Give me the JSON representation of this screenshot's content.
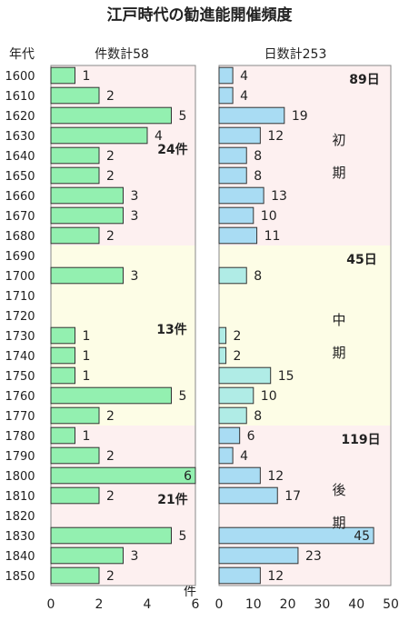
{
  "chart_data": {
    "type": "bar",
    "title": "江戸時代の勧進能開催頻度",
    "row_header": "年代",
    "categories": [
      "1600",
      "1610",
      "1620",
      "1630",
      "1640",
      "1650",
      "1660",
      "1670",
      "1680",
      "1690",
      "1700",
      "1710",
      "1720",
      "1730",
      "1740",
      "1750",
      "1760",
      "1770",
      "1780",
      "1790",
      "1800",
      "1810",
      "1820",
      "1830",
      "1840",
      "1850"
    ],
    "periods": [
      {
        "name": "初期",
        "label_chars": [
          "初",
          "期"
        ],
        "from": "1600",
        "to": "1680",
        "color": "#fdf0f0",
        "count_label": "24件",
        "days_label": "89日"
      },
      {
        "name": "中期",
        "label_chars": [
          "中",
          "期"
        ],
        "from": "1690",
        "to": "1770",
        "color": "#fdfde6",
        "count_label": "13件",
        "days_label": "45日"
      },
      {
        "name": "後期",
        "label_chars": [
          "後",
          "期"
        ],
        "from": "1780",
        "to": "1850",
        "color": "#fdf0f0",
        "count_label": "21件",
        "days_label": "119日"
      }
    ],
    "panels": [
      {
        "title": "件数計58",
        "unit": "件",
        "xlim": [
          0,
          6
        ],
        "ticks": [
          0,
          2,
          4,
          6
        ],
        "bar_color": "#93f0b0",
        "values": [
          1,
          2,
          5,
          4,
          2,
          2,
          3,
          3,
          2,
          null,
          3,
          null,
          null,
          1,
          1,
          1,
          5,
          2,
          1,
          2,
          6,
          2,
          null,
          5,
          3,
          2
        ]
      },
      {
        "title": "日数計253",
        "unit": "",
        "xlim": [
          0,
          50
        ],
        "ticks": [
          0,
          10,
          20,
          30,
          40,
          50
        ],
        "bar_color": "#a9dcf3",
        "bar_color_mid": "#b0ece6",
        "values": [
          4,
          4,
          19,
          12,
          8,
          8,
          13,
          10,
          11,
          null,
          8,
          null,
          null,
          2,
          2,
          15,
          10,
          8,
          6,
          4,
          12,
          17,
          null,
          45,
          23,
          12
        ]
      }
    ]
  },
  "colors": {
    "bar_edge": "#333333",
    "panel_border": "#888888"
  }
}
